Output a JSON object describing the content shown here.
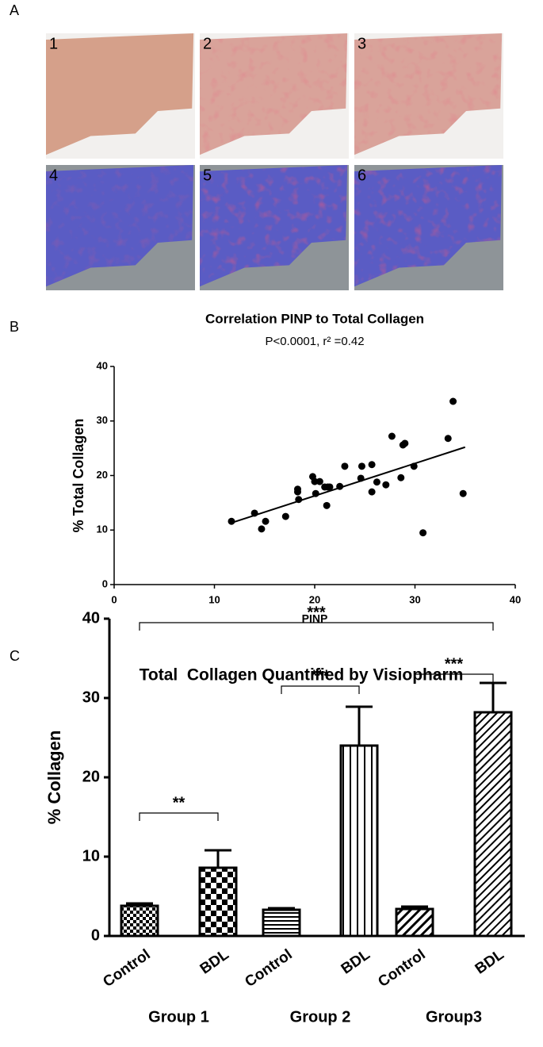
{
  "panel_labels": [
    "A",
    "B",
    "C"
  ],
  "image_labels": [
    "1",
    "2",
    "3",
    "4",
    "5",
    "6"
  ],
  "chart_data": [
    {
      "type": "scatter",
      "title": "Correlation PINP to Total Collagen",
      "subtitle": "P<0.0001, r² =0.42",
      "x_label": "PINP",
      "y_label": "% Total Collagen",
      "color": "#000000",
      "x": [
        11.7,
        14.0,
        14.7,
        15.1,
        17.1,
        18.3,
        18.3,
        18.4,
        19.8,
        20.0,
        20.1,
        20.5,
        21.0,
        21.2,
        21.3,
        21.5,
        22.5,
        23.0,
        24.6,
        24.7,
        25.7,
        25.7,
        26.2,
        27.1,
        27.7,
        28.6,
        28.8,
        29.0,
        29.9,
        30.8,
        33.3,
        33.8,
        34.8
      ],
      "values": [
        11.6,
        13.1,
        10.2,
        11.6,
        12.5,
        17.5,
        17.0,
        15.6,
        19.8,
        18.9,
        16.7,
        18.9,
        17.9,
        14.5,
        17.9,
        17.9,
        18.0,
        21.7,
        19.5,
        21.7,
        22.0,
        17.0,
        18.8,
        18.3,
        27.2,
        19.6,
        25.6,
        25.9,
        21.7,
        9.5,
        26.8,
        33.6,
        16.7
      ],
      "fit_line": {
        "x": [
          12,
          35
        ],
        "values": [
          11.5,
          25.2
        ]
      },
      "xlim": [
        0,
        40
      ],
      "xticks": [
        0,
        10,
        20,
        30,
        40
      ],
      "ylim": [
        0,
        40
      ],
      "yticks": [
        0,
        10,
        20,
        30,
        40
      ]
    },
    {
      "type": "bar",
      "title": "Total  Collagen Quantified by Visiopharm",
      "y_label": "% Collagen",
      "categories": [
        "Control",
        "BDL",
        "Control",
        "BDL",
        "Control",
        "BDL"
      ],
      "groups": [
        "Group 1",
        "Group 2",
        "Group3"
      ],
      "values": [
        3.8,
        8.6,
        3.3,
        24.0,
        3.4,
        28.2
      ],
      "errors": [
        0.3,
        2.2,
        0.2,
        4.9,
        0.3,
        3.7
      ],
      "patterns": [
        "fine-check",
        "check",
        "horizontal",
        "vertical",
        "diagonal",
        "diagonal-dense"
      ],
      "annotations": [
        "**",
        "***",
        "***",
        "***"
      ],
      "ylim": [
        0,
        40
      ],
      "yticks": [
        0,
        10,
        20,
        30,
        40
      ]
    }
  ]
}
